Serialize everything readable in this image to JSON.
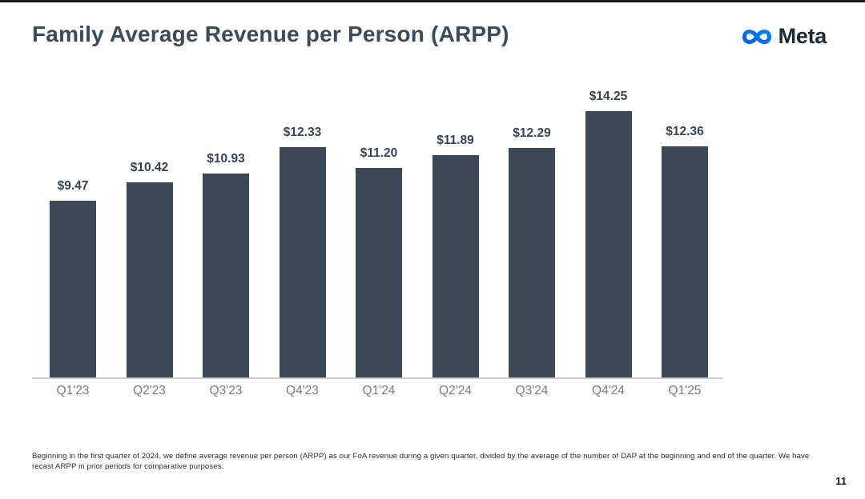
{
  "page": {
    "title": "Family Average Revenue per Person (ARPP)",
    "footnote": "Beginning in the first quarter of 2024, we define average revenue per person (ARPP) as our FoA revenue during a given quarter, divided by the average of the number of DAP at the beginning and end of the quarter. We have recast ARPP in prior periods for comparative purposes.",
    "page_number": "11"
  },
  "brand": {
    "wordmark": "Meta",
    "logo_gradient_start": "#0064E0",
    "logo_gradient_end": "#0082FB",
    "wordmark_color": "#1C2B33"
  },
  "chart_data": {
    "type": "bar",
    "title": "Family Average Revenue per Person (ARPP)",
    "categories": [
      "Q1'23",
      "Q2'23",
      "Q3'23",
      "Q4'23",
      "Q1'24",
      "Q2'24",
      "Q3'24",
      "Q4'24",
      "Q1'25"
    ],
    "values": [
      9.47,
      10.42,
      10.93,
      12.33,
      11.2,
      11.89,
      12.29,
      14.25,
      12.36
    ],
    "value_labels": [
      "$9.47",
      "$10.42",
      "$10.93",
      "$12.33",
      "$11.20",
      "$11.89",
      "$12.29",
      "$14.25",
      "$12.36"
    ],
    "xlabel": "",
    "ylabel": "",
    "ylim": [
      0,
      16
    ],
    "grid": false,
    "legend": false,
    "bar_color": "#3C4854",
    "value_label_color": "#39434F",
    "tick_label_color": "#7C7C7C",
    "axis_line_color": "#C9CDD1"
  }
}
